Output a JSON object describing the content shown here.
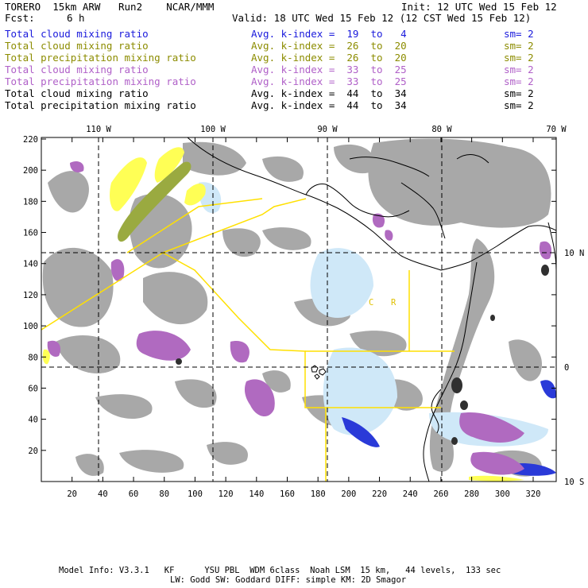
{
  "header": {
    "left1": "TORERO  15km ARW   Run2    NCAR/MMM",
    "right1": "Init: 12 UTC Wed 15 Feb 12",
    "fcst_label": "Fcst:",
    "fcst_value": "6 h",
    "valid": "Valid: 18 UTC Wed 15 Feb 12 (12 CST Wed 15 Feb 12)"
  },
  "legend": [
    {
      "name": "Total cloud mixing ratio",
      "kidx": "Avg. k-index =  19  to   4",
      "sm": "sm= 2",
      "color": "#1a1adc"
    },
    {
      "name": "Total cloud mixing ratio",
      "kidx": "Avg. k-index =  26  to  20",
      "sm": "sm= 2",
      "color": "#8c8c00"
    },
    {
      "name": "Total precipitation mixing ratio",
      "kidx": "Avg. k-index =  26  to  20",
      "sm": "sm= 2",
      "color": "#8c8c00"
    },
    {
      "name": "Total cloud mixing ratio",
      "kidx": "Avg. k-index =  33  to  25",
      "sm": "sm= 2",
      "color": "#b060c8"
    },
    {
      "name": "Total precipitation mixing ratio",
      "kidx": "Avg. k-index =  33  to  25",
      "sm": "sm= 2",
      "color": "#b060c8"
    },
    {
      "name": "Total cloud mixing ratio",
      "kidx": "Avg. k-index =  44  to  34",
      "sm": "sm= 2",
      "color": "#000000"
    },
    {
      "name": "Total precipitation mixing ratio",
      "kidx": "Avg. k-index =  44  to  34",
      "sm": "sm= 2",
      "color": "#000000"
    }
  ],
  "map": {
    "lon_labels": [
      "110 W",
      "100 W",
      "90 W",
      "80 W",
      "70 W"
    ],
    "lat_labels": [
      "10 N",
      "0",
      "10 S"
    ],
    "y_ticks": [
      "220",
      "200",
      "180",
      "160",
      "140",
      "120",
      "100",
      "80",
      "60",
      "40",
      "20"
    ],
    "x_ticks": [
      "20",
      "40",
      "60",
      "80",
      "100",
      "120",
      "140",
      "160",
      "180",
      "200",
      "220",
      "240",
      "260",
      "280",
      "300",
      "320"
    ],
    "label_c": "C",
    "label_r": "R"
  },
  "footer": {
    "line1": "Model Info: V3.3.1   KF      YSU PBL  WDM 6class  Noah LSM  15 km,   44 levels,  133 sec",
    "line2": "LW: Godd SW: Goddard DIFF: simple KM: 2D Smagor"
  }
}
